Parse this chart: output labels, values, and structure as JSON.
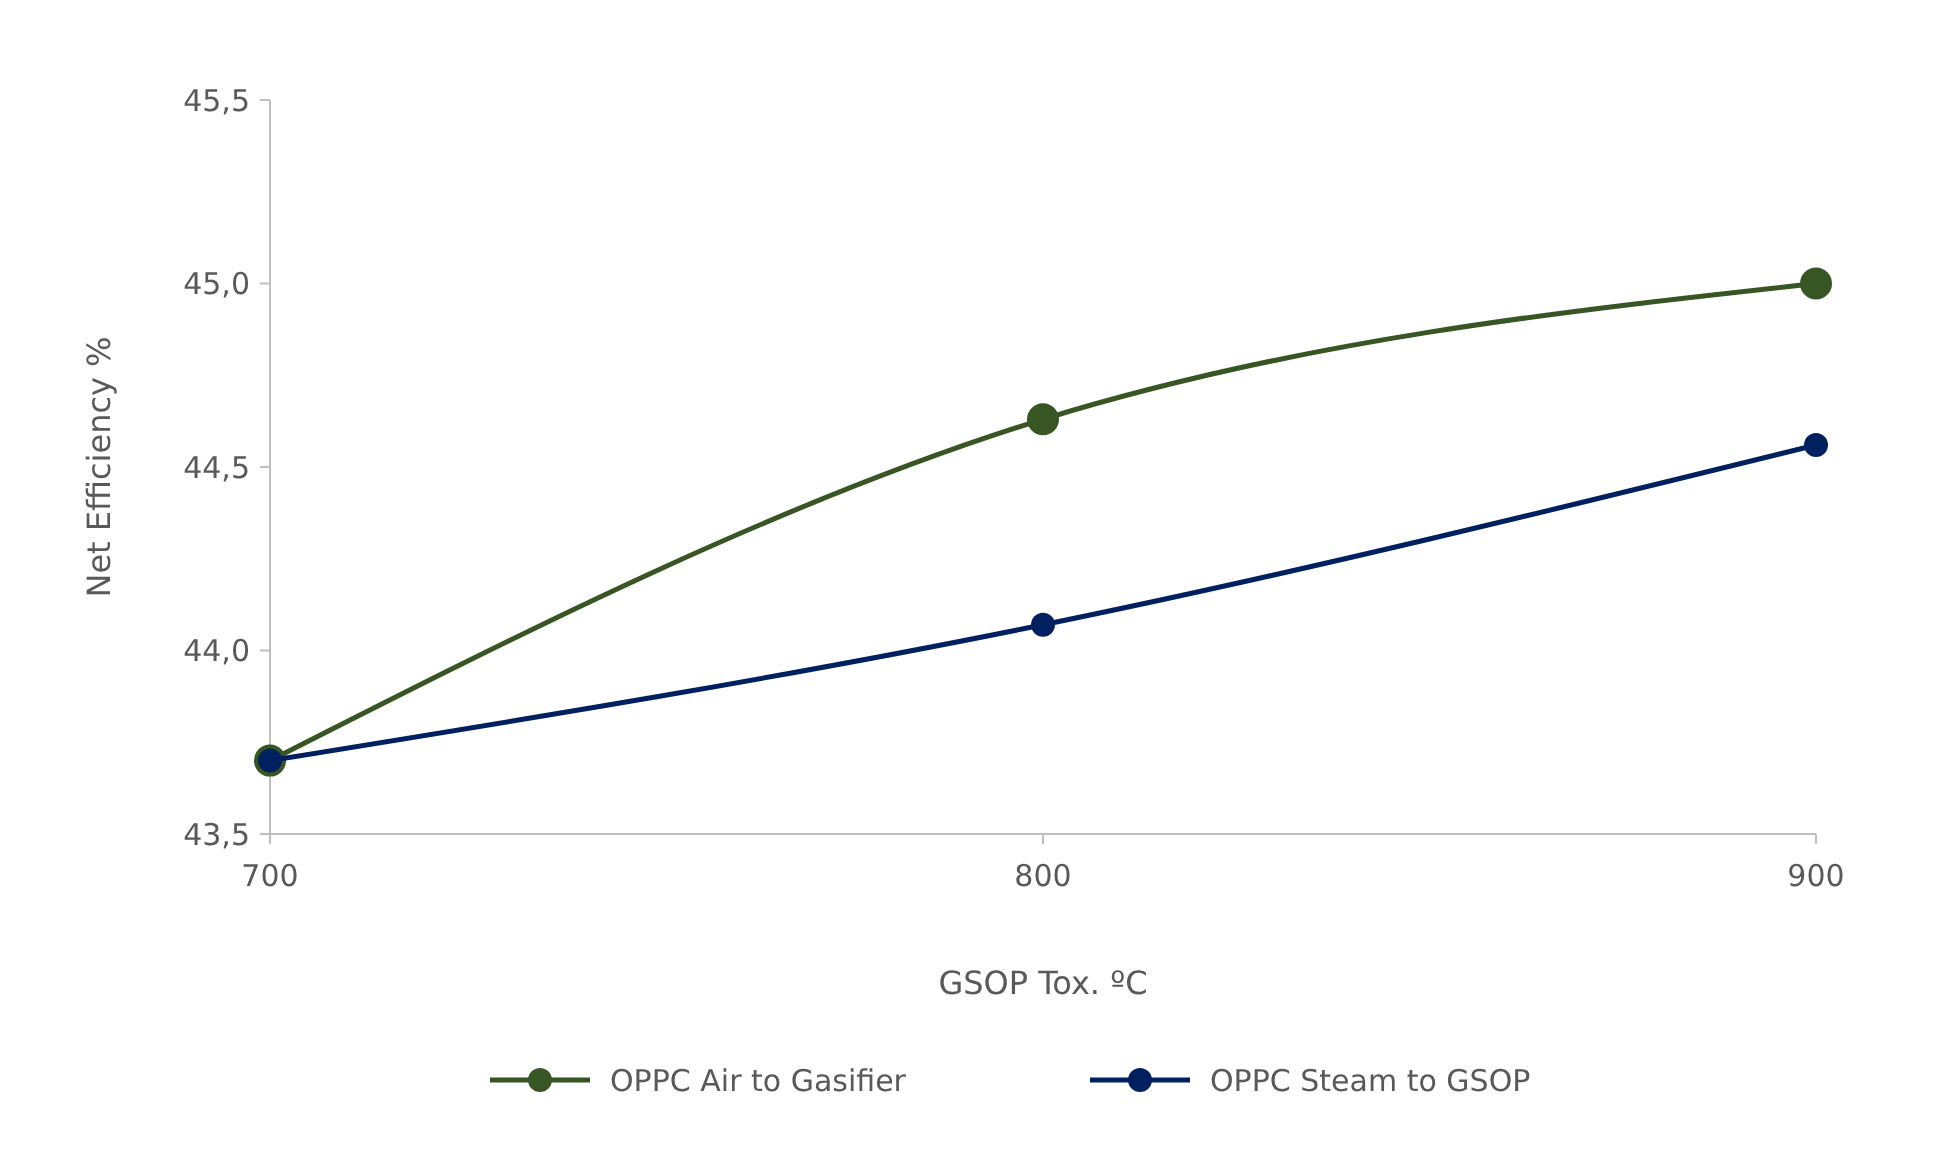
{
  "chart_data": {
    "type": "line",
    "xlabel": "GSOP Tox. ºC",
    "ylabel": "Net Efficiency %",
    "x": [
      700,
      800,
      900
    ],
    "series": [
      {
        "name": "OPPC Air to Gasifier",
        "color": "#375623",
        "values": [
          43.7,
          44.63,
          45.0
        ]
      },
      {
        "name": "OPPC Steam to GSOP",
        "color": "#002060",
        "values": [
          43.7,
          44.07,
          44.56
        ]
      }
    ],
    "xlim": [
      700,
      900
    ],
    "xticks": [
      700,
      800,
      900
    ],
    "ylim": [
      43.5,
      45.5
    ],
    "yticks": [
      {
        "value": 43.5,
        "label": "43,5"
      },
      {
        "value": 44.0,
        "label": "44,0"
      },
      {
        "value": 44.5,
        "label": "44,5"
      },
      {
        "value": 45.0,
        "label": "45,0"
      },
      {
        "value": 45.5,
        "label": "45,5"
      }
    ],
    "grid": false,
    "legend": "bottom",
    "marker": "circle",
    "line_style": "solid"
  }
}
